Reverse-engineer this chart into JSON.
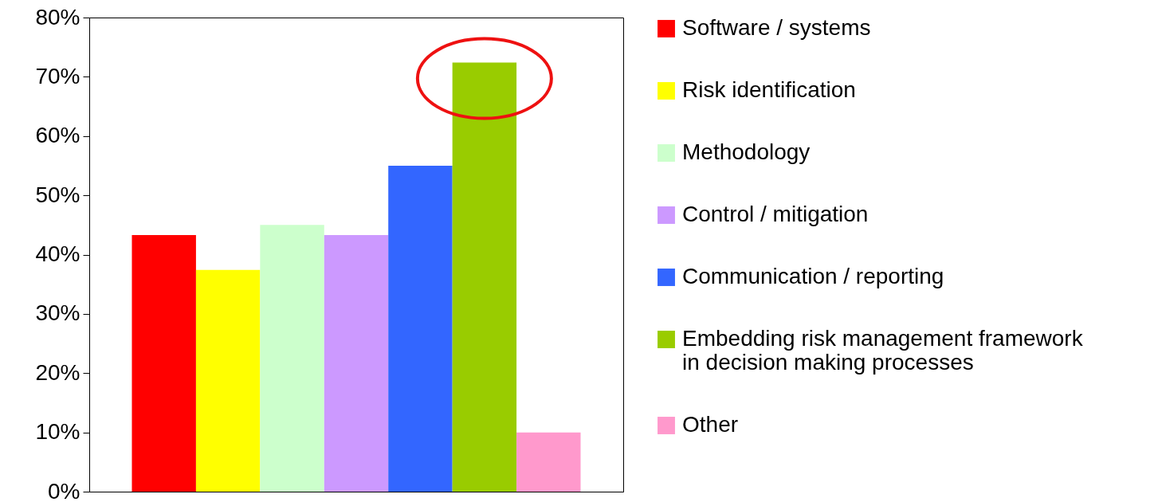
{
  "chart_data": {
    "type": "bar",
    "categories": [
      null
    ],
    "series": [
      {
        "name": "Software / systems",
        "color": "#ff0000",
        "values": [
          43.3
        ]
      },
      {
        "name": "Risk identification",
        "color": "#ffff00",
        "values": [
          37.4
        ]
      },
      {
        "name": "Methodology",
        "color": "#ccffcc",
        "values": [
          45
        ]
      },
      {
        "name": "Control / mitigation",
        "color": "#cc99ff",
        "values": [
          43.3
        ]
      },
      {
        "name": "Communication / reporting",
        "color": "#3366ff",
        "values": [
          55
        ]
      },
      {
        "name": "Embedding risk management framework in decision making processes",
        "color": "#99cc00",
        "values": [
          72.4
        ]
      },
      {
        "name": "Other",
        "color": "#ff99cc",
        "values": [
          10
        ]
      }
    ],
    "ylim": [
      0,
      80
    ],
    "yticks": [
      {
        "value": 0,
        "label": "0%"
      },
      {
        "value": 10,
        "label": "10%"
      },
      {
        "value": 20,
        "label": "20%"
      },
      {
        "value": 30,
        "label": "30%"
      },
      {
        "value": 40,
        "label": "40%"
      },
      {
        "value": 50,
        "label": "50%"
      },
      {
        "value": 60,
        "label": "60%"
      },
      {
        "value": 70,
        "label": "70%"
      },
      {
        "value": 80,
        "label": "80%"
      }
    ],
    "tick_labels": "y",
    "grid": false,
    "legend": "right"
  }
}
